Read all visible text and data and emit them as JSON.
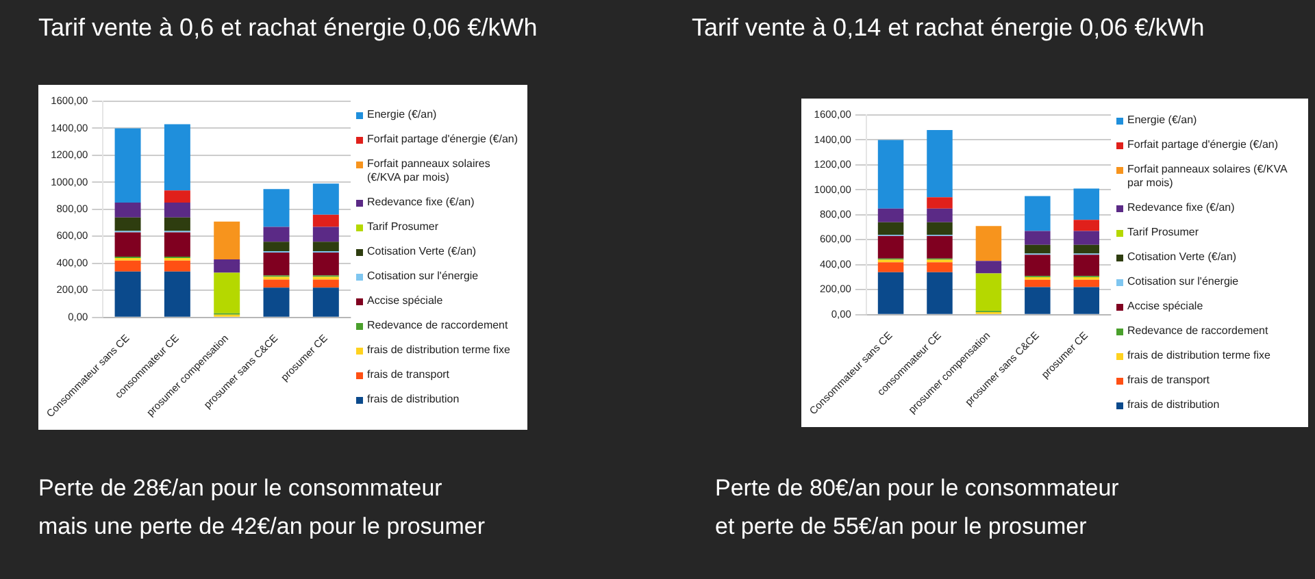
{
  "chart_data": [
    {
      "type": "bar",
      "stacked": true,
      "title": "Tarif vente à 0,6 et rachat énergie 0,06 €/kWh",
      "categories": [
        "Consommateur sans CE",
        "consommateur CE",
        "prosumer compensation",
        "prosumer sans C&CE",
        "prosumer CE"
      ],
      "series": [
        {
          "name": "frais de distribution",
          "color": "#0b4a8c",
          "values": [
            340,
            340,
            0,
            220,
            220
          ]
        },
        {
          "name": "frais de transport",
          "color": "#ff5014",
          "values": [
            80,
            80,
            0,
            60,
            60
          ]
        },
        {
          "name": "frais de distribution terme fixe",
          "color": "#ffd21f",
          "values": [
            20,
            20,
            20,
            20,
            20
          ]
        },
        {
          "name": "Redevance de raccordement",
          "color": "#4aa02c",
          "values": [
            10,
            10,
            10,
            10,
            10
          ]
        },
        {
          "name": "Accise spéciale",
          "color": "#800020",
          "values": [
            180,
            180,
            0,
            170,
            170
          ]
        },
        {
          "name": "Cotisation sur l'énergie",
          "color": "#7fc6f0",
          "values": [
            10,
            10,
            0,
            10,
            10
          ]
        },
        {
          "name": "Cotisation Verte (€/an)",
          "color": "#2e3d0f",
          "values": [
            100,
            100,
            0,
            70,
            70
          ]
        },
        {
          "name": "Tarif Prosumer",
          "color": "#b5d800",
          "values": [
            0,
            0,
            300,
            0,
            0
          ]
        },
        {
          "name": "Redevance fixe (€/an)",
          "color": "#5b2a86",
          "values": [
            110,
            110,
            100,
            110,
            110
          ]
        },
        {
          "name": "Forfait panneaux solaires (€/KVA par mois)",
          "color": "#f7941d",
          "values": [
            0,
            0,
            280,
            0,
            0
          ]
        },
        {
          "name": "Forfait partage d'énergie (€/an)",
          "color": "#e0201b",
          "values": [
            0,
            90,
            0,
            0,
            90
          ]
        },
        {
          "name": "Energie (€/an)",
          "color": "#1f8fdc",
          "values": [
            550,
            490,
            0,
            280,
            230
          ]
        }
      ],
      "ylim": [
        0,
        1600
      ],
      "yticks": [
        {
          "value": 0,
          "label": "0,00"
        },
        {
          "value": 200,
          "label": "200,00"
        },
        {
          "value": 400,
          "label": "400,00"
        },
        {
          "value": 600,
          "label": "600,00"
        },
        {
          "value": 800,
          "label": "800,00"
        },
        {
          "value": 1000,
          "label": "1000,00"
        },
        {
          "value": 1200,
          "label": "1200,00"
        },
        {
          "value": 1400,
          "label": "1400,00"
        },
        {
          "value": 1600,
          "label": "1600,00"
        }
      ],
      "grid": "y",
      "legend": "right",
      "annotations": [
        "Perte de 28€/an pour le consommateur",
        "mais une perte de 42€/an pour le prosumer"
      ]
    },
    {
      "type": "bar",
      "stacked": true,
      "title": "Tarif vente à 0,14 et rachat énergie 0,06 €/kWh",
      "categories": [
        "Consommateur sans CE",
        "consommateur CE",
        "prosumer compensation",
        "prosumer sans C&CE",
        "prosumer CE"
      ],
      "series": [
        {
          "name": "frais de distribution",
          "color": "#0b4a8c",
          "values": [
            340,
            340,
            0,
            220,
            220
          ]
        },
        {
          "name": "frais de transport",
          "color": "#ff5014",
          "values": [
            80,
            80,
            0,
            60,
            60
          ]
        },
        {
          "name": "frais de distribution terme fixe",
          "color": "#ffd21f",
          "values": [
            20,
            20,
            20,
            20,
            20
          ]
        },
        {
          "name": "Redevance de raccordement",
          "color": "#4aa02c",
          "values": [
            10,
            10,
            10,
            10,
            10
          ]
        },
        {
          "name": "Accise spéciale",
          "color": "#800020",
          "values": [
            180,
            180,
            0,
            170,
            170
          ]
        },
        {
          "name": "Cotisation sur l'énergie",
          "color": "#7fc6f0",
          "values": [
            10,
            10,
            0,
            10,
            10
          ]
        },
        {
          "name": "Cotisation Verte (€/an)",
          "color": "#2e3d0f",
          "values": [
            100,
            100,
            0,
            70,
            70
          ]
        },
        {
          "name": "Tarif Prosumer",
          "color": "#b5d800",
          "values": [
            0,
            0,
            300,
            0,
            0
          ]
        },
        {
          "name": "Redevance fixe (€/an)",
          "color": "#5b2a86",
          "values": [
            110,
            110,
            100,
            110,
            110
          ]
        },
        {
          "name": "Forfait panneaux solaires (€/KVA par mois)",
          "color": "#f7941d",
          "values": [
            0,
            0,
            280,
            0,
            0
          ]
        },
        {
          "name": "Forfait partage d'énergie (€/an)",
          "color": "#e0201b",
          "values": [
            0,
            90,
            0,
            0,
            90
          ]
        },
        {
          "name": "Energie (€/an)",
          "color": "#1f8fdc",
          "values": [
            550,
            540,
            0,
            280,
            250
          ]
        }
      ],
      "ylim": [
        0,
        1600
      ],
      "yticks": [
        {
          "value": 0,
          "label": "0,00"
        },
        {
          "value": 200,
          "label": "200,00"
        },
        {
          "value": 400,
          "label": "400,00"
        },
        {
          "value": 600,
          "label": "600,00"
        },
        {
          "value": 800,
          "label": "800,00"
        },
        {
          "value": 1000,
          "label": "1000,00"
        },
        {
          "value": 1200,
          "label": "1200,00"
        },
        {
          "value": 1400,
          "label": "1400,00"
        },
        {
          "value": 1600,
          "label": "1600,00"
        }
      ],
      "grid": "y",
      "legend": "right",
      "annotations": [
        "Perte de 80€/an pour le consommateur",
        "et perte de 55€/an pour le prosumer"
      ]
    }
  ]
}
